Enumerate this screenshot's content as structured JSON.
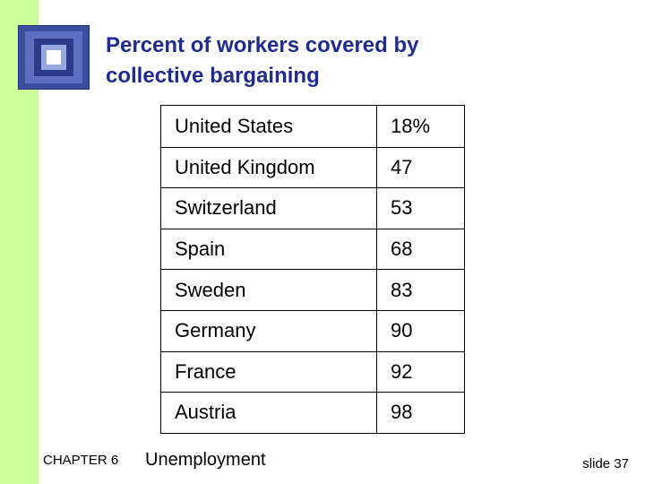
{
  "slide": {
    "title_lines": [
      "Percent of workers covered by",
      "collective bargaining"
    ],
    "accent_color": "#1f2b8f",
    "band_color": "#ccff99"
  },
  "table": {
    "rows": [
      {
        "country": "United States",
        "value": "18%"
      },
      {
        "country": "United Kingdom",
        "value": "47"
      },
      {
        "country": "Switzerland",
        "value": "53"
      },
      {
        "country": "Spain",
        "value": "68"
      },
      {
        "country": "Sweden",
        "value": "83"
      },
      {
        "country": "Germany",
        "value": "90"
      },
      {
        "country": "France",
        "value": "92"
      },
      {
        "country": "Austria",
        "value": "98"
      }
    ]
  },
  "footer": {
    "chapter": "CHAPTER 6",
    "topic": "Unemployment",
    "slide_number": "slide 37"
  }
}
